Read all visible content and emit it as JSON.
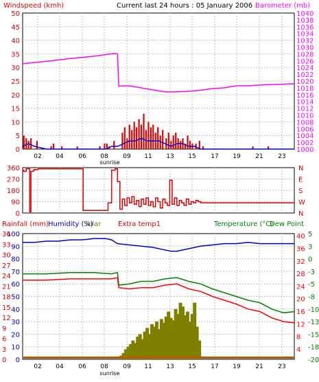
{
  "header": {
    "left_label": "Windspeed (kmh)",
    "center_label": "Current last 24 hours : 05 January 2006",
    "right_label": "Barometer (mb)"
  },
  "sunrise_label": "sunrise",
  "colors": {
    "grid": "#bfbfbf",
    "wind": "#e00000",
    "gust": "#0000cc",
    "barometer": "#ff00ff",
    "direction": "#e00000",
    "humidity": "#0000cc",
    "temp": "#ff0000",
    "dewpoint": "#008000",
    "rain": "#b45a00",
    "solar": "#808000",
    "panel_border": "#000000"
  },
  "chart_data": [
    {
      "type": "bar",
      "name": "wind",
      "title": "",
      "left_axis": "Windspeed (kmh)",
      "right_axis": "Barometer (mb)",
      "xlim": [
        1,
        23.9
      ],
      "x_ticks": [
        "02",
        "04",
        "06",
        "08",
        "09",
        "11",
        "13",
        "15",
        "17",
        "19",
        "21",
        "23"
      ],
      "ylim": [
        0,
        50
      ],
      "y_ticks": [
        0,
        5,
        10,
        15,
        20,
        25,
        30,
        35,
        40,
        45,
        50
      ],
      "y2lim": [
        1000,
        1040
      ],
      "y2_ticks": [
        1000,
        1002,
        1004,
        1006,
        1008,
        1010,
        1012,
        1014,
        1016,
        1018,
        1020,
        1022,
        1024,
        1026,
        1028,
        1030,
        1032,
        1034,
        1036,
        1038,
        1040
      ],
      "series": [
        {
          "name": "Windspeed",
          "type": "bar",
          "x": [
            1.1,
            1.3,
            1.5,
            1.7,
            2.2,
            3.4,
            3.6,
            4.3,
            5.6,
            7.5,
            7.9,
            8.1,
            8.3,
            8.7,
            9.4,
            9.6,
            9.8,
            10.0,
            10.2,
            10.4,
            10.6,
            10.8,
            11.0,
            11.2,
            11.4,
            11.6,
            11.8,
            12.0,
            12.2,
            12.4,
            12.6,
            12.8,
            13.1,
            13.3,
            13.5,
            13.7,
            13.9,
            14.1,
            14.3,
            14.5,
            14.7,
            14.9,
            15.1,
            15.3,
            15.6,
            15.9,
            16.2,
            20.4,
            21.7
          ],
          "values": [
            5,
            4,
            3,
            4,
            3,
            1,
            2,
            1,
            1,
            1,
            2,
            2,
            1,
            3,
            6,
            8,
            4,
            9,
            7,
            10,
            8,
            11,
            9,
            13,
            7,
            10,
            8,
            9,
            6,
            8,
            5,
            7,
            4,
            6,
            3,
            5,
            6,
            4,
            3,
            4,
            2,
            5,
            3,
            2,
            2,
            3,
            1,
            1,
            1
          ]
        },
        {
          "name": "Gust",
          "type": "line",
          "x": [
            1.0,
            1.5,
            2.0,
            3.0,
            4.0,
            5.0,
            6.0,
            7.0,
            8.0,
            8.5,
            9.0,
            9.5,
            10.0,
            10.5,
            11.0,
            11.5,
            12.0,
            12.5,
            13.0,
            13.5,
            14.0,
            14.5,
            15.0,
            15.5,
            16.0,
            17.0,
            18.0,
            19.0,
            20.0,
            21.0,
            22.0,
            23.0,
            23.9
          ],
          "values": [
            1,
            2,
            1,
            0,
            0,
            0,
            0,
            0,
            0,
            1,
            1,
            2,
            3,
            3,
            4,
            3,
            3,
            3,
            2,
            1,
            2,
            2,
            1,
            1,
            0,
            0,
            0,
            0,
            0,
            0,
            0,
            0,
            0
          ]
        },
        {
          "name": "Barometer",
          "type": "line",
          "axis": "right",
          "x": [
            1.0,
            3.0,
            5.0,
            7.0,
            8.7,
            9.0,
            9.1,
            10.0,
            11.0,
            12.0,
            13.0,
            14.0,
            15.0,
            16.0,
            17.0,
            18.0,
            19.0,
            20.0,
            21.0,
            22.0,
            23.9
          ],
          "values": [
            1025.1,
            1025.8,
            1026.6,
            1027.3,
            1028.1,
            1028.0,
            1018.5,
            1018.6,
            1018.0,
            1017.4,
            1016.8,
            1016.8,
            1017.0,
            1017.3,
            1017.8,
            1018.0,
            1018.6,
            1018.6,
            1018.8,
            1019.0,
            1019.2
          ]
        }
      ]
    },
    {
      "type": "line",
      "name": "direction",
      "xlim": [
        1,
        23.9
      ],
      "ylim": [
        0,
        360
      ],
      "y_ticks": [
        0,
        90,
        180,
        270,
        360
      ],
      "right_tick_labels": [
        "N",
        "W",
        "S",
        "E",
        "N"
      ],
      "series": [
        {
          "name": "Wind direction",
          "x": [
            1.0,
            1.1,
            1.3,
            1.6,
            1.7,
            1.9,
            2.0,
            2.3,
            2.5,
            3.0,
            4.0,
            5.0,
            6.0,
            6.1,
            7.0,
            7.5,
            7.8,
            8.2,
            8.5,
            8.8,
            9.0,
            9.2,
            9.4,
            9.6,
            9.8,
            10.0,
            10.2,
            10.4,
            10.6,
            10.8,
            11.0,
            11.2,
            11.4,
            11.6,
            11.8,
            12.0,
            12.2,
            12.4,
            12.6,
            12.8,
            13.0,
            13.2,
            13.4,
            13.6,
            13.8,
            14.0,
            14.2,
            14.4,
            14.6,
            14.8,
            15.0,
            15.2,
            15.4,
            15.6,
            15.8,
            16.0,
            16.5,
            17.0,
            19.0,
            21.0,
            23.9
          ],
          "values": [
            340,
            330,
            350,
            10,
            330,
            340,
            345,
            350,
            350,
            350,
            350,
            350,
            350,
            20,
            20,
            20,
            20,
            80,
            340,
            350,
            250,
            30,
            110,
            60,
            120,
            80,
            130,
            70,
            100,
            50,
            110,
            70,
            120,
            60,
            90,
            50,
            120,
            90,
            40,
            110,
            80,
            60,
            260,
            70,
            120,
            60,
            100,
            80,
            60,
            110,
            70,
            90,
            80,
            100,
            90,
            80,
            80,
            80,
            80,
            80,
            80
          ]
        }
      ]
    },
    {
      "type": "line",
      "name": "lower",
      "labels": {
        "rainfall": "Rainfall (mm)",
        "humidity": "Humidity (%)",
        "solar": "Solar",
        "extra_temp": "Extra temp1",
        "temperature": "Temperature (°C)",
        "dew_point": "Dew Point"
      },
      "xlim": [
        1,
        23.9
      ],
      "ylim": [
        0,
        100
      ],
      "y_ticks": [
        0,
        10,
        20,
        30,
        40,
        50,
        60,
        70,
        80,
        90,
        100
      ],
      "y_ticks_rain": [
        0,
        3,
        6,
        9,
        12,
        15,
        18,
        21,
        24,
        27,
        30,
        33,
        36
      ],
      "y_ticks_temp": [
        4,
        8,
        12,
        16,
        20,
        24,
        28,
        32,
        36,
        40
      ],
      "y_ticks_dew": [
        -20,
        -18,
        -15,
        -13,
        -10,
        -8,
        -5,
        -3,
        0,
        3,
        5
      ],
      "series": [
        {
          "name": "Humidity",
          "x": [
            1.0,
            2.0,
            3.0,
            4.0,
            5.0,
            6.0,
            7.0,
            8.0,
            8.5,
            9.0,
            10.0,
            11.0,
            12.0,
            13.0,
            13.5,
            14.0,
            15.0,
            16.0,
            17.0,
            18.0,
            19.0,
            20.0,
            21.0,
            22.0,
            23.0,
            23.9
          ],
          "values": [
            93,
            93,
            94,
            94,
            95,
            95,
            96,
            96,
            95,
            92,
            91,
            90,
            89,
            87,
            86,
            86,
            88,
            90,
            91,
            92,
            92,
            93,
            92,
            92,
            92,
            92
          ]
        },
        {
          "name": "Temperature",
          "x": [
            1.0,
            3.0,
            5.0,
            7.0,
            8.5,
            9.0,
            9.1,
            10.0,
            11.0,
            12.0,
            13.0,
            14.0,
            15.0,
            16.0,
            17.0,
            18.0,
            19.0,
            20.0,
            21.0,
            22.0,
            23.0,
            23.9
          ],
          "values": [
            68,
            68,
            69,
            69,
            68,
            69,
            59,
            60,
            62,
            62,
            64,
            65,
            62,
            60,
            56,
            53,
            50,
            47,
            45,
            40,
            37,
            38
          ]
        },
        {
          "name": "Extra temp1",
          "x": [
            1.0,
            3.0,
            5.0,
            7.0,
            8.5,
            9.0,
            9.1,
            10.0,
            11.0,
            12.0,
            13.0,
            14.0,
            15.0,
            16.0,
            17.0,
            18.0,
            19.0,
            20.0,
            21.0,
            22.0,
            23.0,
            23.9
          ],
          "values": [
            63,
            63,
            64,
            64,
            64,
            65,
            57,
            56,
            57,
            57,
            59,
            60,
            56,
            54,
            50,
            47,
            44,
            40,
            38,
            33,
            30,
            29
          ]
        },
        {
          "name": "Solar",
          "type": "bar",
          "x": [
            9.3,
            9.5,
            9.7,
            9.9,
            10.1,
            10.3,
            10.5,
            10.7,
            10.9,
            11.1,
            11.3,
            11.5,
            11.7,
            11.9,
            12.1,
            12.3,
            12.5,
            12.7,
            12.9,
            13.1,
            13.3,
            13.5,
            13.7,
            13.9,
            14.1,
            14.3,
            14.5,
            14.7,
            14.9,
            15.1,
            15.3,
            15.5,
            15.7,
            15.9
          ],
          "values": [
            3,
            5,
            8,
            10,
            12,
            15,
            13,
            18,
            20,
            16,
            22,
            25,
            20,
            28,
            26,
            30,
            24,
            32,
            29,
            34,
            38,
            33,
            31,
            40,
            36,
            45,
            42,
            35,
            38,
            30,
            36,
            45,
            26,
            15
          ]
        },
        {
          "name": "Rainfall",
          "type": "bar",
          "x": [
            1.0,
            23.9
          ],
          "values": [
            1,
            1
          ]
        }
      ]
    }
  ]
}
